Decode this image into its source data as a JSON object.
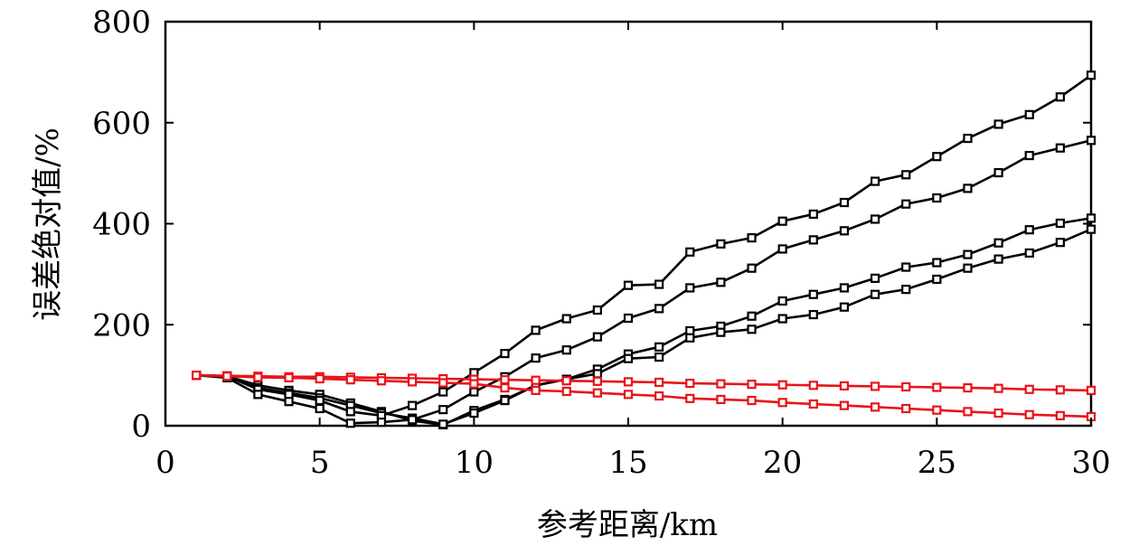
{
  "chart_data": {
    "type": "line",
    "xlabel": "参考距离/km",
    "ylabel": "误差绝对值/%",
    "xlim": [
      0,
      30
    ],
    "ylim": [
      0,
      800
    ],
    "xticks": [
      0,
      5,
      10,
      15,
      20,
      25,
      30
    ],
    "yticks": [
      0,
      200,
      400,
      600,
      800
    ],
    "grid": false,
    "legend": "none",
    "x": [
      1,
      2,
      3,
      4,
      5,
      6,
      7,
      8,
      9,
      10,
      11,
      12,
      13,
      14,
      15,
      16,
      17,
      18,
      19,
      20,
      21,
      22,
      23,
      24,
      25,
      26,
      27,
      28,
      29,
      30
    ],
    "series": [
      {
        "color": "#000000",
        "values": [
          100,
          98,
          80,
          70,
          62,
          45,
          28,
          10,
          2,
          30,
          52,
          80,
          92,
          112,
          142,
          156,
          188,
          197,
          217,
          247,
          260,
          273,
          292,
          314,
          323,
          339,
          362,
          388,
          401,
          411
        ]
      },
      {
        "color": "#000000",
        "values": [
          100,
          98,
          75,
          65,
          55,
          40,
          25,
          15,
          3,
          25,
          50,
          80,
          92,
          103,
          133,
          136,
          174,
          185,
          191,
          212,
          220,
          235,
          260,
          270,
          290,
          312,
          330,
          342,
          363,
          389
        ]
      },
      {
        "color": "#000000",
        "values": [
          100,
          98,
          72,
          62,
          50,
          28,
          20,
          40,
          67,
          105,
          143,
          189,
          212,
          229,
          278,
          280,
          344,
          360,
          372,
          405,
          419,
          442,
          484,
          497,
          533,
          569,
          597,
          616,
          651,
          694
        ]
      },
      {
        "color": "#000000",
        "values": [
          100,
          95,
          62,
          48,
          34,
          5,
          7,
          12,
          32,
          67,
          97,
          134,
          150,
          176,
          213,
          232,
          273,
          284,
          312,
          350,
          368,
          386,
          409,
          439,
          451,
          470,
          501,
          535,
          550,
          565
        ]
      },
      {
        "color": "#e8141b",
        "values": [
          100,
          99,
          98,
          97,
          97,
          96,
          95,
          94,
          93,
          92,
          91,
          90,
          89,
          88,
          87,
          86,
          84,
          83,
          82,
          81,
          80,
          79,
          78,
          77,
          76,
          75,
          74,
          72,
          71,
          70
        ]
      },
      {
        "color": "#e8141b",
        "values": [
          100,
          98,
          96,
          95,
          93,
          91,
          89,
          87,
          85,
          83,
          75,
          70,
          68,
          65,
          62,
          59,
          54,
          52,
          50,
          46,
          43,
          40,
          37,
          34,
          31,
          28,
          25,
          22,
          20,
          18
        ]
      }
    ]
  }
}
